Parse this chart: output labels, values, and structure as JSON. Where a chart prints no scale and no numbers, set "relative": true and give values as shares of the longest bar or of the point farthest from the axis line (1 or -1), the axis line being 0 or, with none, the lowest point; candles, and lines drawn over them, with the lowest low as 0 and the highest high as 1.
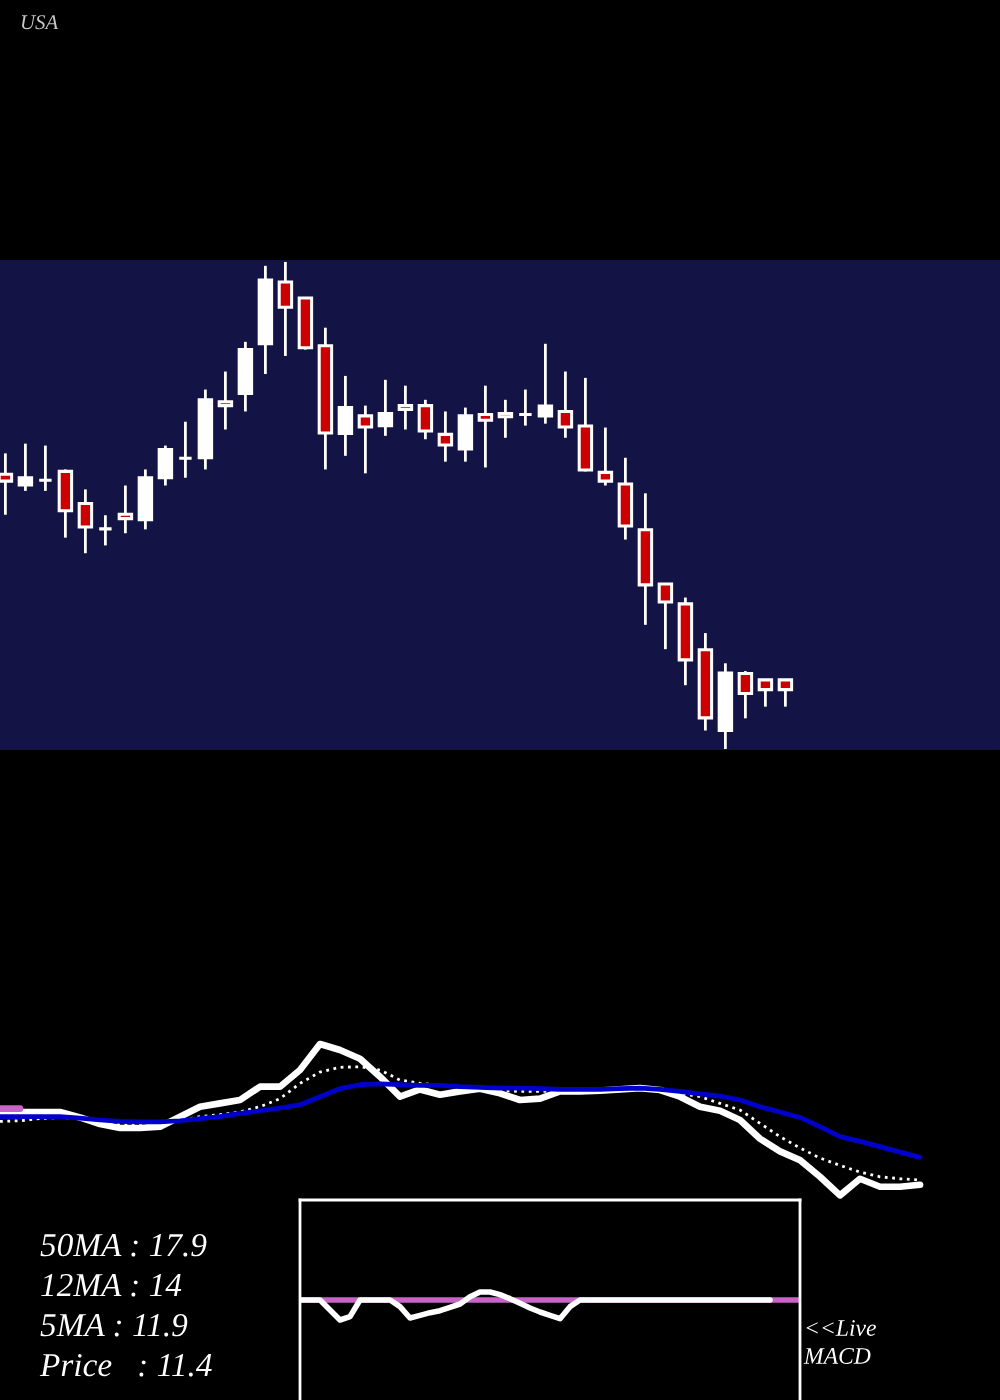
{
  "chart_data": [
    {
      "type": "candlestick",
      "title": "USA",
      "relative": true,
      "categories": [
        null,
        null,
        null,
        null,
        null,
        null,
        null,
        null,
        null,
        null,
        null,
        null,
        null,
        null,
        null,
        null,
        null,
        null,
        null,
        null,
        null,
        null,
        null,
        null,
        null,
        null,
        null,
        null,
        null,
        null,
        null,
        null,
        null,
        null,
        null,
        null,
        null,
        null,
        null,
        null
      ],
      "ohlc": [
        [
          0.564,
          0.607,
          0.481,
          0.55
        ],
        [
          0.542,
          0.627,
          0.53,
          0.557
        ],
        [
          0.552,
          0.623,
          0.53,
          0.552
        ],
        [
          0.57,
          0.574,
          0.434,
          0.489
        ],
        [
          0.504,
          0.533,
          0.402,
          0.456
        ],
        [
          0.452,
          0.48,
          0.418,
          0.452
        ],
        [
          0.482,
          0.541,
          0.443,
          0.473
        ],
        [
          0.471,
          0.574,
          0.451,
          0.557
        ],
        [
          0.557,
          0.623,
          0.541,
          0.615
        ],
        [
          0.597,
          0.672,
          0.557,
          0.597
        ],
        [
          0.598,
          0.738,
          0.574,
          0.717
        ],
        [
          0.713,
          0.775,
          0.656,
          0.705
        ],
        [
          0.73,
          0.836,
          0.693,
          0.82
        ],
        [
          0.832,
          0.992,
          0.77,
          0.963
        ],
        [
          0.959,
          1.0,
          0.807,
          0.907
        ],
        [
          0.926,
          0.926,
          0.82,
          0.824
        ],
        [
          0.828,
          0.865,
          0.574,
          0.649
        ],
        [
          0.648,
          0.766,
          0.602,
          0.701
        ],
        [
          0.684,
          0.705,
          0.566,
          0.661
        ],
        [
          0.664,
          0.758,
          0.643,
          0.689
        ],
        [
          0.705,
          0.746,
          0.656,
          0.697
        ],
        [
          0.705,
          0.717,
          0.636,
          0.653
        ],
        [
          0.646,
          0.693,
          0.59,
          0.624
        ],
        [
          0.616,
          0.701,
          0.59,
          0.684
        ],
        [
          0.687,
          0.746,
          0.578,
          0.675
        ],
        [
          0.689,
          0.717,
          0.639,
          0.682
        ],
        [
          0.687,
          0.738,
          0.664,
          0.687
        ],
        [
          0.684,
          0.832,
          0.668,
          0.704
        ],
        [
          0.693,
          0.775,
          0.639,
          0.661
        ],
        [
          0.663,
          0.762,
          0.57,
          0.573
        ],
        [
          0.568,
          0.66,
          0.541,
          0.55
        ],
        [
          0.544,
          0.598,
          0.43,
          0.458
        ],
        [
          0.45,
          0.525,
          0.255,
          0.337
        ],
        [
          0.339,
          0.339,
          0.205,
          0.302
        ],
        [
          0.298,
          0.311,
          0.131,
          0.183
        ],
        [
          0.204,
          0.238,
          0.038,
          0.064
        ],
        [
          0.038,
          0.176,
          0.0,
          0.156
        ],
        [
          0.155,
          0.16,
          0.063,
          0.114
        ],
        [
          0.142,
          0.142,
          0.087,
          0.122
        ],
        [
          0.142,
          0.142,
          0.087,
          0.122
        ]
      ],
      "colors": [
        "#cc0000",
        "#ffffff",
        "#ffffff",
        "#cc0000",
        "#cc0000",
        "#ffffff",
        "#cc0000",
        "#ffffff",
        "#ffffff",
        "#ffffff",
        "#ffffff",
        "#cc0000",
        "#ffffff",
        "#ffffff",
        "#cc0000",
        "#cc0000",
        "#cc0000",
        "#ffffff",
        "#cc0000",
        "#ffffff",
        "#cc0000",
        "#cc0000",
        "#cc0000",
        "#ffffff",
        "#cc0000",
        "#cc0000",
        "#ffffff",
        "#ffffff",
        "#cc0000",
        "#cc0000",
        "#cc0000",
        "#cc0000",
        "#cc0000",
        "#cc0000",
        "#cc0000",
        "#cc0000",
        "#ffffff",
        "#cc0000",
        "#cc0000",
        "#cc0000"
      ]
    },
    {
      "type": "line",
      "relative": true,
      "categories": [
        null,
        null,
        null,
        null,
        null,
        null,
        null,
        null,
        null,
        null,
        null,
        null,
        null,
        null,
        null,
        null,
        null,
        null,
        null,
        null,
        null,
        null,
        null,
        null,
        null,
        null,
        null,
        null,
        null,
        null,
        null,
        null,
        null,
        null,
        null,
        null,
        null,
        null,
        null,
        null,
        null,
        null,
        null,
        null,
        null,
        null,
        null
      ],
      "series": [
        {
          "color": "#ffffff",
          "values": [
            0.551,
            0.551,
            0.551,
            0.551,
            0.515,
            0.471,
            0.445,
            0.445,
            0.454,
            0.52,
            0.586,
            0.608,
            0.63,
            0.718,
            0.718,
            0.828,
            1.0,
            0.96,
            0.903,
            0.784,
            0.652,
            0.7,
            0.665,
            0.687,
            0.705,
            0.674,
            0.63,
            0.639,
            0.687,
            0.687,
            0.692,
            0.7,
            0.709,
            0.696,
            0.652,
            0.586,
            0.559,
            0.498,
            0.374,
            0.291,
            0.233,
            0.123,
            0.0,
            0.11,
            0.057,
            0.057,
            0.07
          ]
        },
        {
          "color": "#ffffff",
          "line_style": "dotted",
          "values": [
            0.489,
            0.493,
            0.507,
            0.515,
            0.507,
            0.485,
            0.467,
            0.467,
            0.467,
            0.493,
            0.52,
            0.533,
            0.551,
            0.586,
            0.639,
            0.74,
            0.815,
            0.846,
            0.85,
            0.828,
            0.762,
            0.74,
            0.727,
            0.714,
            0.705,
            0.692,
            0.687,
            0.687,
            0.687,
            0.692,
            0.696,
            0.7,
            0.709,
            0.7,
            0.674,
            0.652,
            0.608,
            0.564,
            0.476,
            0.388,
            0.313,
            0.247,
            0.198,
            0.154,
            0.123,
            0.11,
            0.101
          ]
        },
        {
          "color": "#0000cc",
          "values": [
            0.52,
            0.52,
            0.52,
            0.52,
            0.511,
            0.498,
            0.489,
            0.485,
            0.485,
            0.493,
            0.507,
            0.52,
            0.542,
            0.559,
            0.577,
            0.599,
            0.652,
            0.705,
            0.731,
            0.736,
            0.731,
            0.727,
            0.727,
            0.718,
            0.714,
            0.709,
            0.709,
            0.705,
            0.7,
            0.7,
            0.7,
            0.705,
            0.709,
            0.7,
            0.687,
            0.67,
            0.656,
            0.63,
            0.586,
            0.551,
            0.515,
            0.454,
            0.388,
            0.357,
            0.322,
            0.286,
            0.251
          ]
        },
        {
          "color": "#c864c8",
          "values": [
            0.573,
            0.573,
            null,
            null,
            null,
            null,
            null,
            null,
            null,
            null,
            null,
            null,
            null,
            null,
            null,
            null,
            null,
            null,
            null,
            null,
            null,
            null,
            null,
            null,
            null,
            null,
            null,
            null,
            null,
            null,
            null,
            null,
            null,
            null,
            null,
            null,
            null,
            null,
            null,
            null,
            null,
            null,
            null,
            null,
            null,
            null,
            null
          ]
        }
      ],
      "annotations": [
        "50MA : 17.9",
        "12MA : 14",
        "5MA : 11.9",
        "Price   : 11.4"
      ]
    },
    {
      "type": "line",
      "relative": true,
      "categories": [
        null,
        null,
        null,
        null,
        null,
        null,
        null,
        null,
        null,
        null,
        null,
        null,
        null,
        null,
        null,
        null,
        null,
        null,
        null,
        null,
        null,
        null,
        null,
        null,
        null,
        null,
        null,
        null,
        null,
        null,
        null,
        null,
        null,
        null,
        null,
        null,
        null,
        null,
        null,
        null,
        null,
        null,
        null,
        null,
        null,
        null,
        null,
        null,
        null,
        null,
        null
      ],
      "ref_lines": [
        {
          "axis": "y",
          "value": 0,
          "color": "#c864c8"
        }
      ],
      "series": [
        {
          "color": "#ffffff",
          "values": [
            0,
            0,
            0,
            -0.5,
            -1,
            -0.833,
            0,
            0,
            0,
            0,
            -0.333,
            -0.9,
            -0.767,
            -0.633,
            -0.533,
            -0.367,
            -0.2,
            0.167,
            0.4,
            0.4,
            0.267,
            0.067,
            -0.167,
            -0.4,
            -0.6,
            -0.767,
            -0.933,
            -0.333,
            0,
            0,
            0,
            0,
            0,
            0,
            0,
            0,
            0,
            0,
            0,
            0,
            0,
            0,
            0,
            0,
            0,
            0,
            0,
            0,
            null,
            null,
            null
          ]
        }
      ],
      "annotations": [
        "<<Live",
        "MACD"
      ]
    }
  ]
}
